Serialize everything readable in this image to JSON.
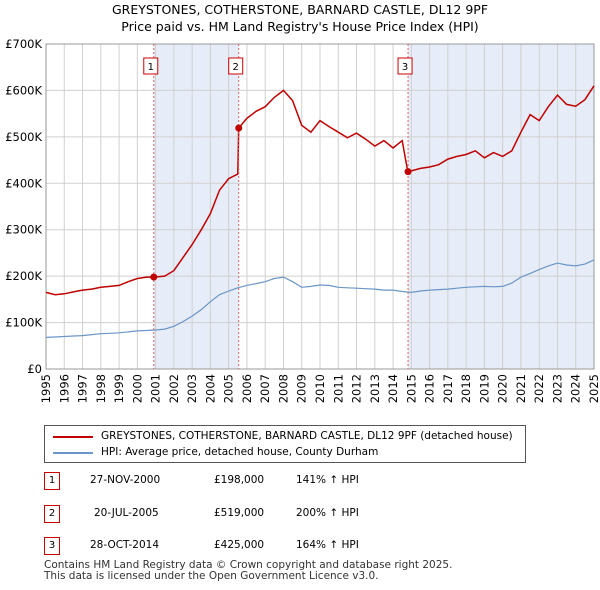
{
  "title_line1": "GREYSTONES, COTHERSTONE, BARNARD CASTLE, DL12 9PF",
  "title_line2": "Price paid vs. HM Land Registry's House Price Index (HPI)",
  "colors": {
    "property": "#c00000",
    "hpi": "#6a96c8",
    "shade": "#e6ecf8",
    "vline": "#e06060"
  },
  "chart_data": {
    "type": "line",
    "xlim": [
      1995,
      2025
    ],
    "ylim": [
      0,
      700000
    ],
    "y_ticks": [
      0,
      100000,
      200000,
      300000,
      400000,
      500000,
      600000,
      700000
    ],
    "y_tick_labels": [
      "£0",
      "£100K",
      "£200K",
      "£300K",
      "£400K",
      "£500K",
      "£600K",
      "£700K"
    ],
    "x_ticks": [
      "1995",
      "1996",
      "1997",
      "1998",
      "1999",
      "2000",
      "2001",
      "2002",
      "2003",
      "2004",
      "2005",
      "2006",
      "2007",
      "2008",
      "2009",
      "2010",
      "2011",
      "2012",
      "2013",
      "2014",
      "2015",
      "2016",
      "2017",
      "2018",
      "2019",
      "2020",
      "2021",
      "2022",
      "2023",
      "2024",
      "2025"
    ],
    "series": [
      {
        "name": "GREYSTONES, COTHERSTONE, BARNARD CASTLE, DL12 9PF (detached house)",
        "x": [
          1995.0,
          1995.5,
          1996.0,
          1996.5,
          1997.0,
          1997.5,
          1998.0,
          1998.5,
          1999.0,
          1999.5,
          2000.0,
          2000.5,
          2000.9,
          2001.5,
          2002.0,
          2002.5,
          2003.0,
          2003.5,
          2004.0,
          2004.5,
          2005.0,
          2005.5,
          2005.55,
          2006.0,
          2006.5,
          2007.0,
          2007.5,
          2008.0,
          2008.5,
          2009.0,
          2009.5,
          2010.0,
          2010.5,
          2011.0,
          2011.5,
          2012.0,
          2012.5,
          2013.0,
          2013.5,
          2014.0,
          2014.5,
          2014.8,
          2014.82,
          2015.5,
          2016.0,
          2016.5,
          2017.0,
          2017.5,
          2018.0,
          2018.5,
          2019.0,
          2019.5,
          2020.0,
          2020.5,
          2021.0,
          2021.5,
          2022.0,
          2022.5,
          2023.0,
          2023.5,
          2024.0,
          2024.5,
          2025.0
        ],
        "y": [
          165000,
          160000,
          162000,
          166000,
          170000,
          172000,
          176000,
          178000,
          180000,
          188000,
          195000,
          198000,
          198000,
          200000,
          212000,
          240000,
          268000,
          300000,
          335000,
          385000,
          410000,
          420000,
          519000,
          540000,
          555000,
          565000,
          585000,
          600000,
          578000,
          525000,
          510000,
          535000,
          522000,
          510000,
          498000,
          508000,
          495000,
          480000,
          492000,
          476000,
          492000,
          426000,
          425000,
          432000,
          435000,
          440000,
          452000,
          458000,
          462000,
          470000,
          455000,
          466000,
          458000,
          470000,
          510000,
          548000,
          535000,
          565000,
          590000,
          570000,
          566000,
          580000,
          610000
        ]
      },
      {
        "name": "HPI: Average price, detached house, County Durham",
        "x": [
          1995.0,
          1995.5,
          1996.0,
          1996.5,
          1997.0,
          1997.5,
          1998.0,
          1998.5,
          1999.0,
          1999.5,
          2000.0,
          2000.5,
          2001.0,
          2001.5,
          2002.0,
          2002.5,
          2003.0,
          2003.5,
          2004.0,
          2004.5,
          2005.0,
          2005.5,
          2006.0,
          2006.5,
          2007.0,
          2007.5,
          2008.0,
          2008.5,
          2009.0,
          2009.5,
          2010.0,
          2010.5,
          2011.0,
          2011.5,
          2012.0,
          2012.5,
          2013.0,
          2013.5,
          2014.0,
          2014.5,
          2015.0,
          2015.5,
          2016.0,
          2016.5,
          2017.0,
          2017.5,
          2018.0,
          2018.5,
          2019.0,
          2019.5,
          2020.0,
          2020.5,
          2021.0,
          2021.5,
          2022.0,
          2022.5,
          2023.0,
          2023.5,
          2024.0,
          2024.5,
          2025.0
        ],
        "y": [
          68000,
          69000,
          70000,
          71000,
          72000,
          74000,
          76000,
          77000,
          78000,
          80000,
          82000,
          83000,
          84000,
          86000,
          92000,
          102000,
          114000,
          128000,
          145000,
          160000,
          168000,
          175000,
          180000,
          184000,
          188000,
          195000,
          198000,
          188000,
          176000,
          178000,
          181000,
          180000,
          176000,
          175000,
          174000,
          173000,
          172000,
          170000,
          170000,
          167000,
          165000,
          168000,
          170000,
          171000,
          172000,
          174000,
          176000,
          177000,
          178000,
          177000,
          178000,
          185000,
          198000,
          206000,
          214000,
          222000,
          228000,
          224000,
          222000,
          226000,
          235000
        ]
      }
    ],
    "sales": [
      {
        "label": "1",
        "x": 2000.9,
        "y": 198000
      },
      {
        "label": "2",
        "x": 2005.55,
        "y": 519000
      },
      {
        "label": "3",
        "x": 2014.82,
        "y": 425000
      }
    ],
    "shaded_ranges": [
      [
        2000.9,
        2005.55
      ],
      [
        2014.82,
        2025.0
      ]
    ]
  },
  "legend": {
    "property": "GREYSTONES, COTHERSTONE, BARNARD CASTLE, DL12 9PF (detached house)",
    "hpi": "HPI: Average price, detached house, County Durham"
  },
  "sales_table": [
    {
      "num": "1",
      "date": "27-NOV-2000",
      "price": "£198,000",
      "hpi": "141% ↑ HPI"
    },
    {
      "num": "2",
      "date": "20-JUL-2005",
      "price": "£519,000",
      "hpi": "200% ↑ HPI"
    },
    {
      "num": "3",
      "date": "28-OCT-2014",
      "price": "£425,000",
      "hpi": "164% ↑ HPI"
    }
  ],
  "footer_line1": "Contains HM Land Registry data © Crown copyright and database right 2025.",
  "footer_line2": "This data is licensed under the Open Government Licence v3.0."
}
